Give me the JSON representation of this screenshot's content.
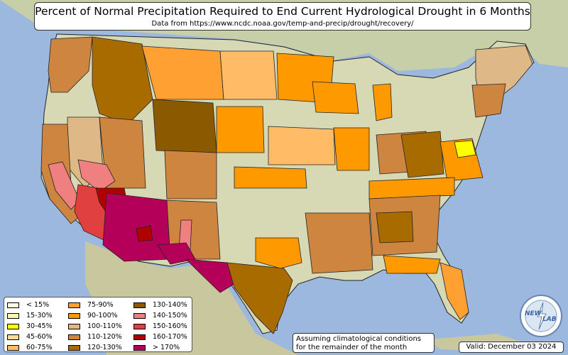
{
  "title": "Percent of Normal Precipitation Required to End Current Hydrological Drought in 6 Months",
  "subtitle": "Data from https://www.ncdc.noaa.gov/temp-and-precip/drought/recovery/",
  "note_line1": "Assuming climatological conditions",
  "note_line2": "for the remainder of the month",
  "valid": "Valid: December 03 2024",
  "logo_text_left": "NEW",
  "logo_text_right": "LAB",
  "colors": {
    "ocean": "#9db8de",
    "land": "#d6d9b4",
    "border": "#222222"
  },
  "legend": {
    "columns": [
      [
        {
          "label": "< 15%",
          "color": "#ffffe0"
        },
        {
          "label": "15-30%",
          "color": "#fff3b0"
        },
        {
          "label": "30-45%",
          "color": "#ffff00"
        },
        {
          "label": "45-60%",
          "color": "#ffd999"
        },
        {
          "label": "60-75%",
          "color": "#ffbb66"
        }
      ],
      [
        {
          "label": "75-90%",
          "color": "#ffa033"
        },
        {
          "label": "90-100%",
          "color": "#ff9900"
        },
        {
          "label": "100-110%",
          "color": "#deb887"
        },
        {
          "label": "110-120%",
          "color": "#cd853f"
        },
        {
          "label": "120-130%",
          "color": "#a86b00"
        }
      ],
      [
        {
          "label": "130-140%",
          "color": "#8b5a00"
        },
        {
          "label": "140-150%",
          "color": "#f08080"
        },
        {
          "label": "150-160%",
          "color": "#e04040"
        },
        {
          "label": "160-170%",
          "color": "#b00000"
        },
        {
          "label": "> 170%",
          "color": "#b5005a"
        }
      ]
    ]
  }
}
